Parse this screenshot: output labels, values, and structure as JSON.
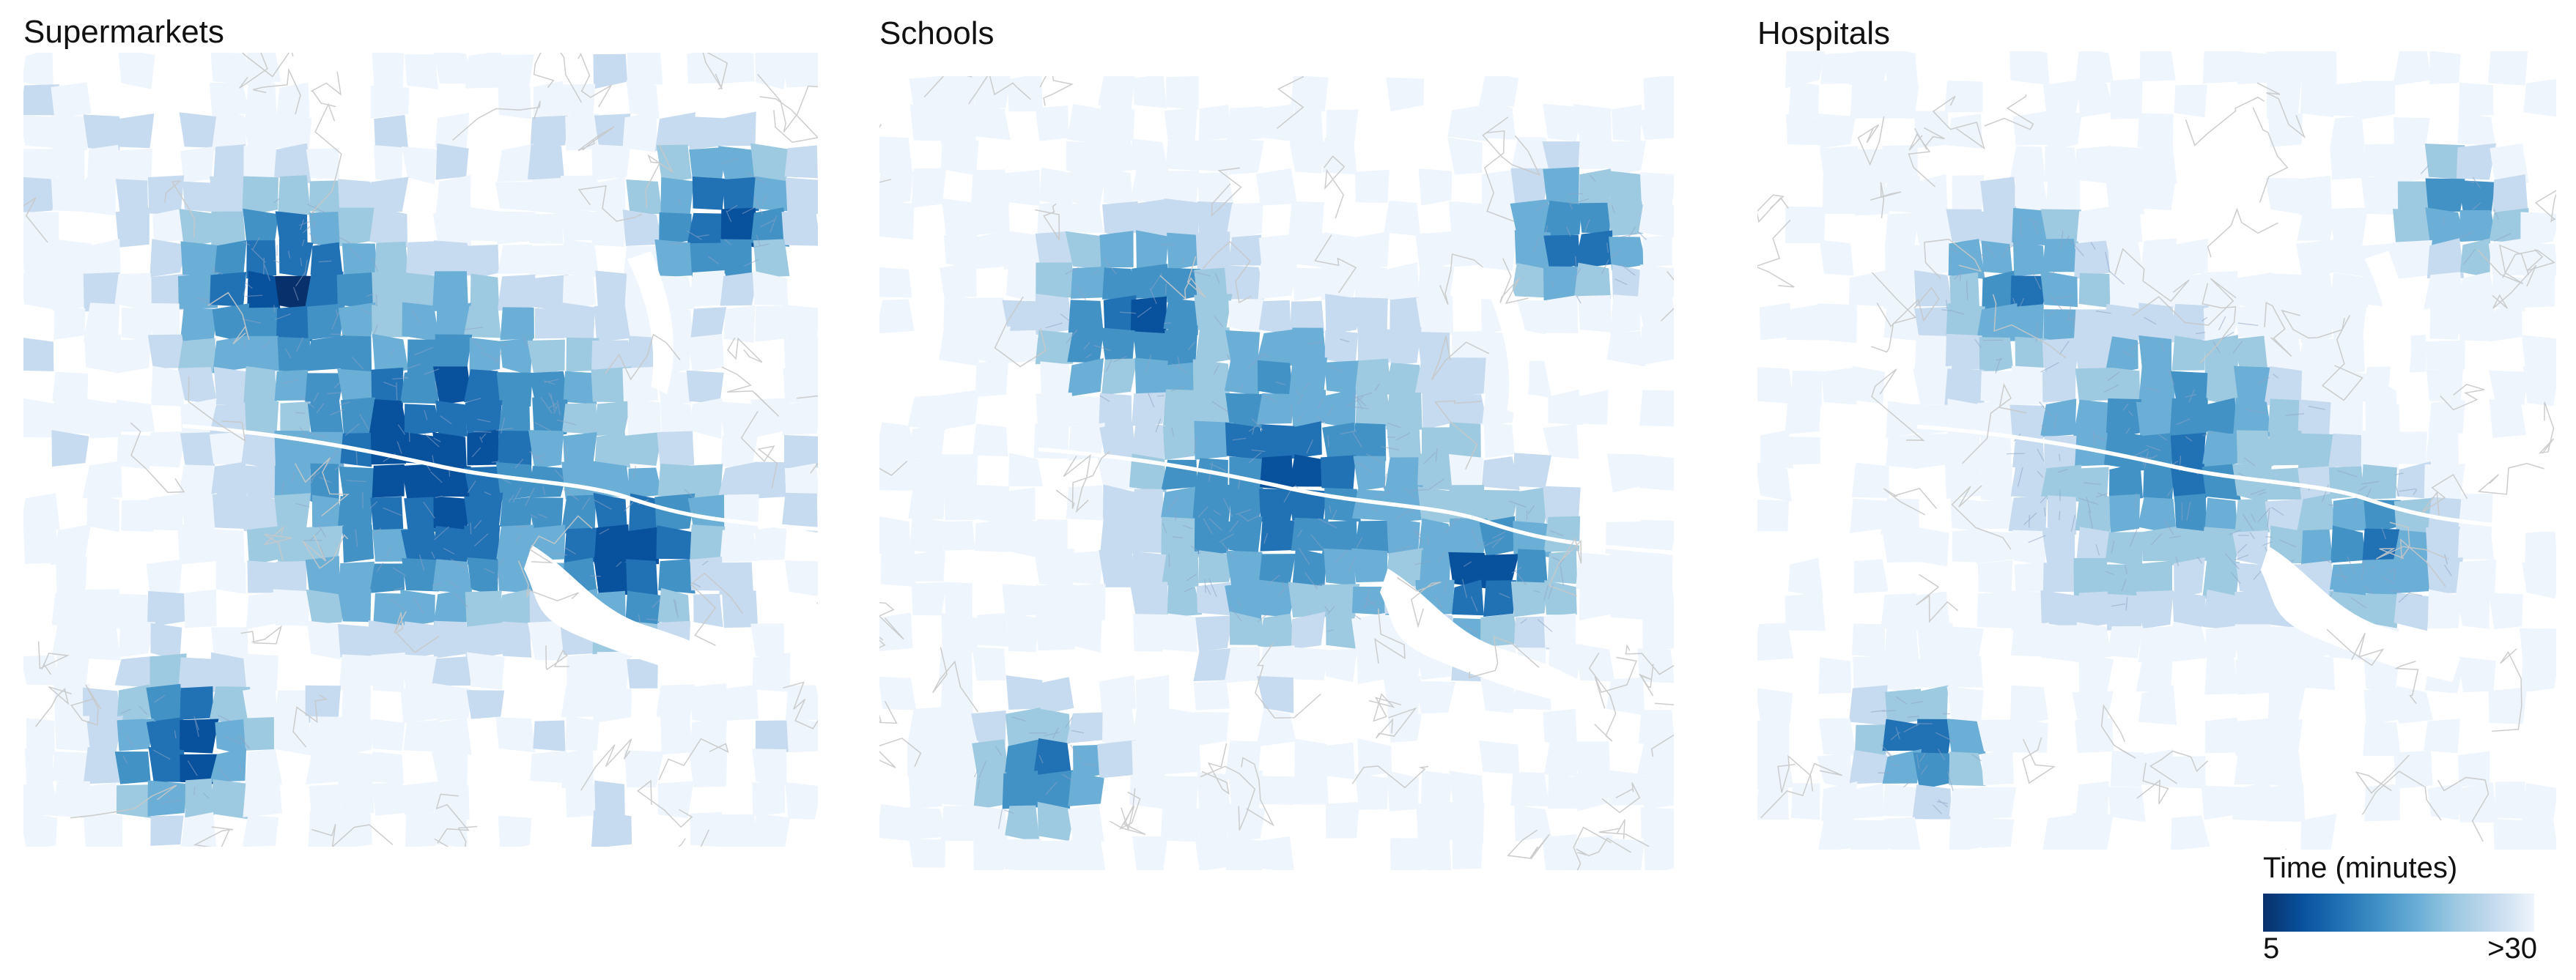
{
  "panels": [
    {
      "title": "Supermarkets",
      "access": "high"
    },
    {
      "title": "Schools",
      "access": "medium"
    },
    {
      "title": "Hospitals",
      "access": "low"
    }
  ],
  "legend": {
    "title": "Time (minutes)",
    "min_label": "5",
    "max_label": ">30",
    "colors": [
      "#08306b",
      "#08519c",
      "#2171b5",
      "#4292c6",
      "#6baed6",
      "#9ecae1",
      "#c6dbef",
      "#eef5fc"
    ]
  },
  "colors": {
    "roads": "#c8c8c8",
    "water": "#ffffff",
    "urban_lines": "#8ea4c4"
  }
}
